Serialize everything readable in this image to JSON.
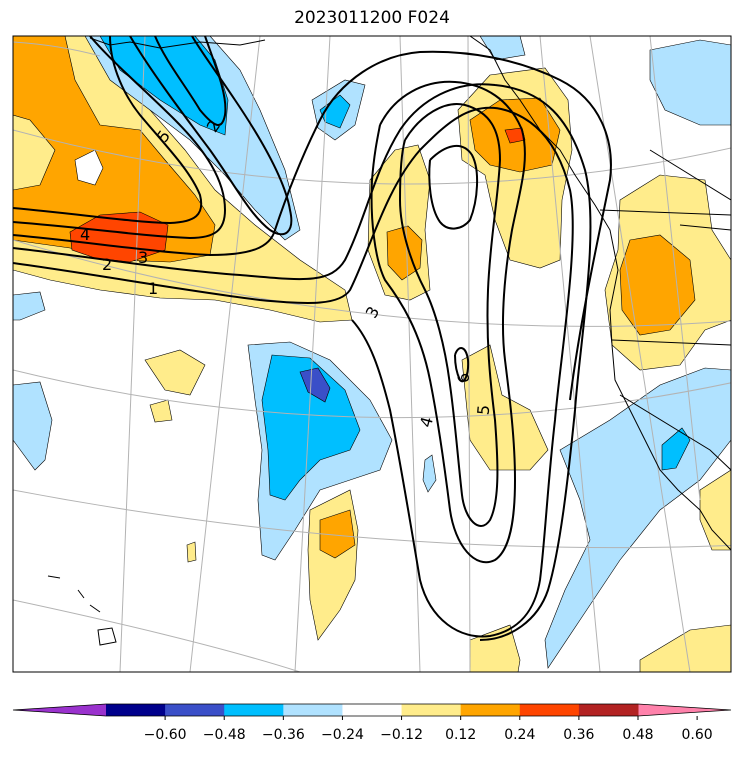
{
  "title": "2023011200 F024",
  "colorbar": {
    "colors": [
      "#9a32cd",
      "#00008b",
      "#3a4fc8",
      "#00bfff",
      "#b0e2ff",
      "#ffffff",
      "#ffec8b",
      "#ffa500",
      "#ff4500",
      "#b22222",
      "#ff82ab"
    ],
    "tick_labels": [
      "−0.60",
      "−0.48",
      "−0.36",
      "−0.24",
      "−0.12",
      "0.12",
      "0.24",
      "0.36",
      "0.48",
      "0.60"
    ]
  },
  "contour_labels": [
    "5",
    "2",
    "4",
    "3",
    "2",
    "1",
    "3",
    "4",
    "5",
    "6"
  ]
}
